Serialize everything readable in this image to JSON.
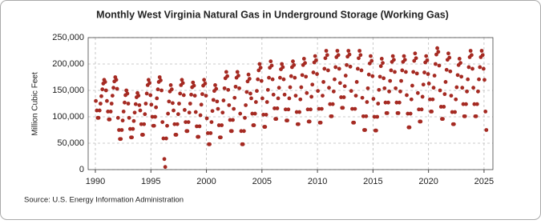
{
  "chart_data": {
    "type": "scatter",
    "title": "Monthly West Virginia Natural Gas in Underground Storage (Working Gas)",
    "y_label": "Million Cubic Feet",
    "source": "Source: U.S. Energy Information Administration",
    "color": "#a52a22",
    "grid": true,
    "xlim": [
      1989.35,
      2025.8
    ],
    "xticks": [
      1990,
      1995,
      2000,
      2005,
      2010,
      2015,
      2020,
      2025
    ],
    "ylim": [
      0,
      250000
    ],
    "yticks": [
      0,
      {
        "value": 50000,
        "label": "50,000"
      },
      {
        "value": 100000,
        "label": "100,000"
      },
      {
        "value": 150000,
        "label": "150,000"
      },
      {
        "value": 200000,
        "label": "200,000"
      },
      {
        "value": 250000,
        "label": "250,000"
      }
    ],
    "x": [
      1990.04,
      1990.13,
      1990.21,
      1990.29,
      1990.38,
      1990.46,
      1990.54,
      1990.63,
      1990.71,
      1990.79,
      1990.88,
      1990.96,
      1991.04,
      1991.13,
      1991.21,
      1991.29,
      1991.38,
      1991.46,
      1991.54,
      1991.63,
      1991.71,
      1991.79,
      1991.88,
      1991.96,
      1992.04,
      1992.13,
      1992.21,
      1992.29,
      1992.38,
      1992.46,
      1992.54,
      1992.63,
      1992.71,
      1992.79,
      1992.88,
      1992.96,
      1993.04,
      1993.13,
      1993.21,
      1993.29,
      1993.38,
      1993.46,
      1993.54,
      1993.63,
      1993.71,
      1993.79,
      1993.88,
      1993.96,
      1994.04,
      1994.13,
      1994.21,
      1994.29,
      1994.38,
      1994.46,
      1994.54,
      1994.63,
      1994.71,
      1994.79,
      1994.88,
      1994.96,
      1995.04,
      1995.13,
      1995.21,
      1995.29,
      1995.38,
      1995.46,
      1995.54,
      1995.63,
      1995.71,
      1995.79,
      1995.88,
      1995.96,
      1996.04,
      1996.13,
      1996.21,
      1996.29,
      1996.38,
      1996.46,
      1996.54,
      1996.63,
      1996.71,
      1996.79,
      1996.88,
      1996.96,
      1997.04,
      1997.13,
      1997.21,
      1997.29,
      1997.38,
      1997.46,
      1997.54,
      1997.63,
      1997.71,
      1997.79,
      1997.88,
      1997.96,
      1998.04,
      1998.13,
      1998.21,
      1998.29,
      1998.38,
      1998.46,
      1998.54,
      1998.63,
      1998.71,
      1998.79,
      1998.88,
      1998.96,
      1999.04,
      1999.13,
      1999.21,
      1999.29,
      1999.38,
      1999.46,
      1999.54,
      1999.63,
      1999.71,
      1999.79,
      1999.88,
      1999.96,
      2000.04,
      2000.13,
      2000.21,
      2000.29,
      2000.38,
      2000.46,
      2000.54,
      2000.63,
      2000.71,
      2000.79,
      2000.88,
      2000.96,
      2001.04,
      2001.13,
      2001.21,
      2001.29,
      2001.38,
      2001.46,
      2001.54,
      2001.63,
      2001.71,
      2001.79,
      2001.88,
      2001.96,
      2002.04,
      2002.13,
      2002.21,
      2002.29,
      2002.38,
      2002.46,
      2002.54,
      2002.63,
      2002.71,
      2002.79,
      2002.88,
      2002.96,
      2003.04,
      2003.13,
      2003.21,
      2003.29,
      2003.38,
      2003.46,
      2003.54,
      2003.63,
      2003.71,
      2003.79,
      2003.88,
      2003.96,
      2004.04,
      2004.13,
      2004.21,
      2004.29,
      2004.38,
      2004.46,
      2004.54,
      2004.63,
      2004.71,
      2004.79,
      2004.88,
      2004.96,
      2005.04,
      2005.13,
      2005.21,
      2005.29,
      2005.38,
      2005.46,
      2005.54,
      2005.63,
      2005.71,
      2005.79,
      2005.88,
      2005.96,
      2006.04,
      2006.13,
      2006.21,
      2006.29,
      2006.38,
      2006.46,
      2006.54,
      2006.63,
      2006.71,
      2006.79,
      2006.88,
      2006.96,
      2007.04,
      2007.13,
      2007.21,
      2007.29,
      2007.38,
      2007.46,
      2007.54,
      2007.63,
      2007.71,
      2007.79,
      2007.88,
      2007.96,
      2008.04,
      2008.13,
      2008.21,
      2008.29,
      2008.38,
      2008.46,
      2008.54,
      2008.63,
      2008.71,
      2008.79,
      2008.88,
      2008.96,
      2009.04,
      2009.13,
      2009.21,
      2009.29,
      2009.38,
      2009.46,
      2009.54,
      2009.63,
      2009.71,
      2009.79,
      2009.88,
      2009.96,
      2010.04,
      2010.13,
      2010.21,
      2010.29,
      2010.38,
      2010.46,
      2010.54,
      2010.63,
      2010.71,
      2010.79,
      2010.88,
      2010.96,
      2011.04,
      2011.13,
      2011.21,
      2011.29,
      2011.38,
      2011.46,
      2011.54,
      2011.63,
      2011.71,
      2011.79,
      2011.88,
      2011.96,
      2012.04,
      2012.13,
      2012.21,
      2012.29,
      2012.38,
      2012.46,
      2012.54,
      2012.63,
      2012.71,
      2012.79,
      2012.88,
      2012.96,
      2013.04,
      2013.13,
      2013.21,
      2013.29,
      2013.38,
      2013.46,
      2013.54,
      2013.63,
      2013.71,
      2013.79,
      2013.88,
      2013.96,
      2014.04,
      2014.13,
      2014.21,
      2014.29,
      2014.38,
      2014.46,
      2014.54,
      2014.63,
      2014.71,
      2014.79,
      2014.88,
      2014.96,
      2015.04,
      2015.13,
      2015.21,
      2015.29,
      2015.38,
      2015.46,
      2015.54,
      2015.63,
      2015.71,
      2015.79,
      2015.88,
      2015.96,
      2016.04,
      2016.13,
      2016.21,
      2016.29,
      2016.38,
      2016.46,
      2016.54,
      2016.63,
      2016.71,
      2016.79,
      2016.88,
      2016.96,
      2017.04,
      2017.13,
      2017.21,
      2017.29,
      2017.38,
      2017.46,
      2017.54,
      2017.63,
      2017.71,
      2017.79,
      2017.88,
      2017.96,
      2018.04,
      2018.13,
      2018.21,
      2018.29,
      2018.38,
      2018.46,
      2018.54,
      2018.63,
      2018.71,
      2018.79,
      2018.88,
      2018.96,
      2019.04,
      2019.13,
      2019.21,
      2019.29,
      2019.38,
      2019.46,
      2019.54,
      2019.63,
      2019.71,
      2019.79,
      2019.88,
      2019.96,
      2020.04,
      2020.13,
      2020.21,
      2020.29,
      2020.38,
      2020.46,
      2020.54,
      2020.63,
      2020.71,
      2020.79,
      2020.88,
      2020.96,
      2021.04,
      2021.13,
      2021.21,
      2021.29,
      2021.38,
      2021.46,
      2021.54,
      2021.63,
      2021.71,
      2021.79,
      2021.88,
      2021.96,
      2022.04,
      2022.13,
      2022.21,
      2022.29,
      2022.38,
      2022.46,
      2022.54,
      2022.63,
      2022.71,
      2022.79,
      2022.88,
      2022.96,
      2023.04,
      2023.13,
      2023.21,
      2023.29,
      2023.38,
      2023.46,
      2023.54,
      2023.63,
      2023.71,
      2023.79,
      2023.88,
      2023.96,
      2024.04,
      2024.13,
      2024.21,
      2024.29,
      2024.38,
      2024.46,
      2024.54,
      2024.63,
      2024.71,
      2024.79,
      2024.88,
      2024.96,
      2025.04,
      2025.13,
      2025.21
    ],
    "values": [
      130000,
      112000,
      98000,
      98000,
      112000,
      125000,
      139000,
      152000,
      163000,
      170000,
      166000,
      150000,
      130000,
      110000,
      95000,
      95000,
      110000,
      125000,
      140000,
      155000,
      167000,
      175000,
      170000,
      153000,
      98000,
      75000,
      58000,
      58000,
      75000,
      93000,
      110000,
      127000,
      141000,
      150000,
      144000,
      125000,
      98000,
      77000,
      61000,
      61000,
      77000,
      92000,
      108000,
      124000,
      137000,
      145000,
      140000,
      122000,
      112000,
      86000,
      66000,
      66000,
      86000,
      105000,
      125000,
      144000,
      160000,
      170000,
      164000,
      141000,
      123000,
      100000,
      83000,
      83000,
      100000,
      118000,
      135000,
      152000,
      166000,
      175000,
      169000,
      150000,
      90000,
      59000,
      20000,
      5000,
      59000,
      83000,
      106000,
      129000,
      148000,
      160000,
      152000,
      126000,
      112000,
      86000,
      66000,
      66000,
      86000,
      105000,
      125000,
      144000,
      160000,
      170000,
      164000,
      141000,
      113000,
      90000,
      73000,
      73000,
      90000,
      108000,
      125000,
      142000,
      156000,
      165000,
      159000,
      140000,
      109000,
      82000,
      62000,
      62000,
      82000,
      103000,
      123000,
      143000,
      159000,
      170000,
      163000,
      140000,
      97000,
      69000,
      48000,
      48000,
      69000,
      90000,
      111000,
      132000,
      149000,
      160000,
      153000,
      129000,
      115000,
      84000,
      61000,
      61000,
      84000,
      108000,
      131000,
      154000,
      173000,
      185000,
      177000,
      151000,
      122000,
      94000,
      73000,
      73000,
      94000,
      115000,
      136000,
      157000,
      174000,
      185000,
      178000,
      154000,
      106000,
      73000,
      48000,
      48000,
      73000,
      98000,
      122000,
      147000,
      167000,
      180000,
      172000,
      144000,
      135000,
      106000,
      84000,
      84000,
      106000,
      128000,
      149000,
      171000,
      188000,
      200000,
      193000,
      168000,
      135000,
      104000,
      81000,
      81000,
      104000,
      128000,
      151000,
      174000,
      193000,
      205000,
      197000,
      171000,
      142000,
      116000,
      96000,
      96000,
      116000,
      135000,
      155000,
      174000,
      190000,
      200000,
      194000,
      171000,
      142000,
      114000,
      93000,
      93000,
      114000,
      135000,
      156000,
      177000,
      194000,
      205000,
      198000,
      174000,
      140000,
      109000,
      86000,
      86000,
      109000,
      133000,
      156000,
      179000,
      198000,
      210000,
      202000,
      176000,
      145000,
      114000,
      91000,
      91000,
      114000,
      138000,
      161000,
      184000,
      203000,
      215000,
      207000,
      181000,
      149000,
      115000,
      89000,
      89000,
      115000,
      140000,
      166000,
      191000,
      211000,
      225000,
      217000,
      188000,
      155000,
      124000,
      101000,
      101000,
      124000,
      148000,
      171000,
      194000,
      213000,
      225000,
      217000,
      191000,
      164000,
      137000,
      117000,
      117000,
      137000,
      158000,
      178000,
      198000,
      214000,
      225000,
      218000,
      195000,
      149000,
      115000,
      89000,
      89000,
      115000,
      140000,
      166000,
      191000,
      211000,
      225000,
      217000,
      188000,
      136000,
      101000,
      75000,
      75000,
      101000,
      128000,
      154000,
      180000,
      201000,
      215000,
      206000,
      177000,
      134000,
      100000,
      74000,
      74000,
      100000,
      125000,
      151000,
      176000,
      196000,
      210000,
      202000,
      173000,
      154000,
      127000,
      107000,
      107000,
      127000,
      148000,
      168000,
      188000,
      204000,
      215000,
      208000,
      185000,
      154000,
      127000,
      107000,
      107000,
      127000,
      148000,
      168000,
      188000,
      204000,
      215000,
      208000,
      185000,
      141000,
      106000,
      80000,
      80000,
      106000,
      133000,
      159000,
      185000,
      206000,
      220000,
      211000,
      182000,
      145000,
      114000,
      91000,
      91000,
      114000,
      138000,
      161000,
      184000,
      203000,
      215000,
      207000,
      181000,
      163000,
      133000,
      110000,
      110000,
      133000,
      155000,
      178000,
      200000,
      218000,
      230000,
      223000,
      197000,
      150000,
      119000,
      96000,
      96000,
      119000,
      143000,
      166000,
      189000,
      208000,
      220000,
      212000,
      186000,
      140000,
      109000,
      86000,
      86000,
      109000,
      133000,
      156000,
      179000,
      198000,
      210000,
      202000,
      176000,
      155000,
      124000,
      101000,
      101000,
      124000,
      148000,
      171000,
      194000,
      213000,
      225000,
      217000,
      191000,
      155000,
      124000,
      101000,
      101000,
      124000,
      148000,
      171000,
      194000,
      213000,
      225000,
      217000,
      191000,
      170000,
      110000,
      75000
    ]
  }
}
